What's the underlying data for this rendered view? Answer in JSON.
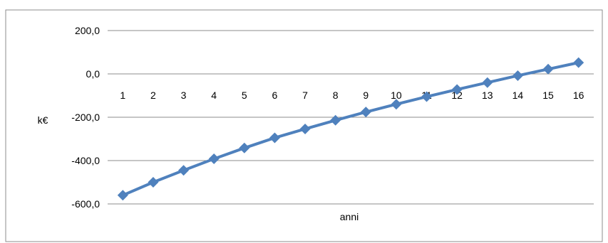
{
  "chart_data": {
    "type": "line",
    "title": "",
    "xlabel": "anni",
    "ylabel": "k€",
    "categories": [
      "1",
      "2",
      "3",
      "4",
      "5",
      "6",
      "7",
      "8",
      "9",
      "10",
      "11",
      "12",
      "13",
      "14",
      "15",
      "16"
    ],
    "series": [
      {
        "values": [
          -560,
          -500,
          -445,
          -392,
          -342,
          -295,
          -254,
          -214,
          -176,
          -140,
          -105,
          -72,
          -40,
          -8,
          22,
          52
        ],
        "color": "#4F81BD",
        "marker": "diamond"
      }
    ],
    "ylim": [
      -600,
      200
    ],
    "yticks": [
      -600,
      -400,
      -200,
      0,
      200
    ],
    "ytick_labels": [
      "-600,0",
      "-400,0",
      "-200,0",
      "0,0",
      "200,0"
    ],
    "grid": true,
    "legend": "none",
    "gridline_color": "#8C8C8C",
    "border_color": "#8C8C8C"
  }
}
